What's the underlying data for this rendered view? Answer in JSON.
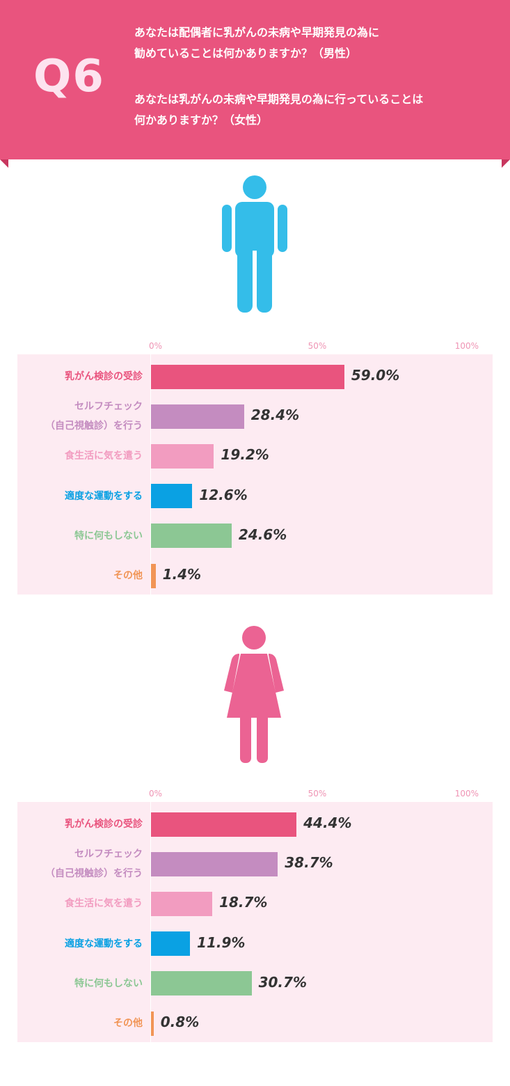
{
  "header": {
    "q_label": "Q6",
    "question_male_line1": "あなたは配偶者に乳がんの未病や早期発見の為に",
    "question_male_line2": "勧めていることは何かありますか？（男性）",
    "question_female_line1": "あなたは乳がんの未病や早期発見の為に行っていることは",
    "question_female_line2": "何かありますか？（女性）"
  },
  "colors": {
    "header": "#e9547e",
    "male_icon": "#34bde9",
    "female_icon": "#eb6393",
    "chart_bg": "#fdebf2"
  },
  "icons": {
    "male": "male-figure-icon",
    "female": "female-figure-icon"
  },
  "chart_data": [
    {
      "type": "bar",
      "orientation": "horizontal",
      "axis": {
        "ticks": [
          "0%",
          "50%",
          "100%"
        ],
        "xlim": [
          0,
          100
        ]
      },
      "categories": [
        {
          "lines": [
            "乳がん検診の受診"
          ],
          "color": "#e9547e"
        },
        {
          "lines": [
            "セルフチェック",
            "（自己視触診）を行う"
          ],
          "color": "#c48cc0"
        },
        {
          "lines": [
            "食生活に気を遣う"
          ],
          "color": "#f29cc0"
        },
        {
          "lines": [
            "適度な運動をする"
          ],
          "color": "#0aa1e3"
        },
        {
          "lines": [
            "特に何もしない"
          ],
          "color": "#8cc794"
        },
        {
          "lines": [
            "その他"
          ],
          "color": "#f19556"
        }
      ],
      "values": [
        59.0,
        28.4,
        19.2,
        12.6,
        24.6,
        1.4
      ],
      "value_labels": [
        "59.0%",
        "28.4%",
        "19.2%",
        "12.6%",
        "24.6%",
        "1.4%"
      ]
    },
    {
      "type": "bar",
      "orientation": "horizontal",
      "axis": {
        "ticks": [
          "0%",
          "50%",
          "100%"
        ],
        "xlim": [
          0,
          100
        ]
      },
      "categories": [
        {
          "lines": [
            "乳がん検診の受診"
          ],
          "color": "#e9547e"
        },
        {
          "lines": [
            "セルフチェック",
            "（自己視触診）を行う"
          ],
          "color": "#c48cc0"
        },
        {
          "lines": [
            "食生活に気を遣う"
          ],
          "color": "#f29cc0"
        },
        {
          "lines": [
            "適度な運動をする"
          ],
          "color": "#0aa1e3"
        },
        {
          "lines": [
            "特に何もしない"
          ],
          "color": "#8cc794"
        },
        {
          "lines": [
            "その他"
          ],
          "color": "#f19556"
        }
      ],
      "values": [
        44.4,
        38.7,
        18.7,
        11.9,
        30.7,
        0.8
      ],
      "value_labels": [
        "44.4%",
        "38.7%",
        "18.7%",
        "11.9%",
        "30.7%",
        "0.8%"
      ]
    }
  ]
}
